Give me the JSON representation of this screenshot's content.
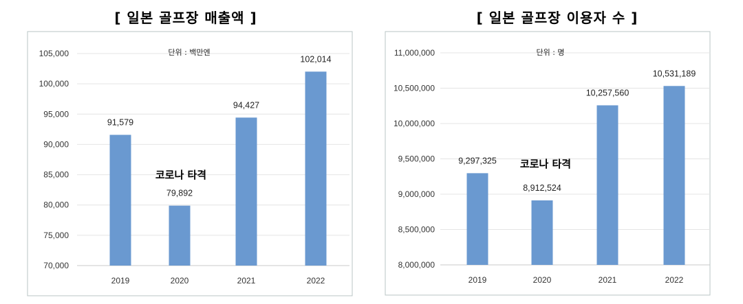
{
  "chart_data": [
    {
      "type": "bar",
      "title": "[ 일본 골프장 매출액 ]",
      "unit_label": "단위 : 백만엔",
      "annotation": "코로나 타격",
      "categories": [
        "2019",
        "2020",
        "2021",
        "2022"
      ],
      "values": [
        91579,
        79892,
        94427,
        102014
      ],
      "value_labels": [
        "91,579",
        "79,892",
        "94,427",
        "102,014"
      ],
      "yticks": [
        70000,
        75000,
        80000,
        85000,
        90000,
        95000,
        100000,
        105000
      ],
      "ytick_labels": [
        "70,000",
        "75,000",
        "80,000",
        "85,000",
        "90,000",
        "95,000",
        "100,000",
        "105,000"
      ],
      "ylim": [
        70000,
        105000
      ],
      "grid": true,
      "bar_color": "#6a99d0"
    },
    {
      "type": "bar",
      "title": "[ 일본 골프장 이용자 수 ]",
      "unit_label": "단위 : 명",
      "annotation": "코로나 타격",
      "categories": [
        "2019",
        "2020",
        "2021",
        "2022"
      ],
      "values": [
        9297325,
        8912524,
        10257560,
        10531189
      ],
      "value_labels": [
        "9,297,325",
        "8,912,524",
        "10,257,560",
        "10,531,189"
      ],
      "yticks": [
        8000000,
        8500000,
        9000000,
        9500000,
        10000000,
        10500000,
        11000000
      ],
      "ytick_labels": [
        "8,000,000",
        "8,500,000",
        "9,000,000",
        "9,500,000",
        "10,000,000",
        "10,500,000",
        "11,000,000"
      ],
      "ylim": [
        8000000,
        11000000
      ],
      "grid": true,
      "bar_color": "#6a99d0"
    }
  ]
}
